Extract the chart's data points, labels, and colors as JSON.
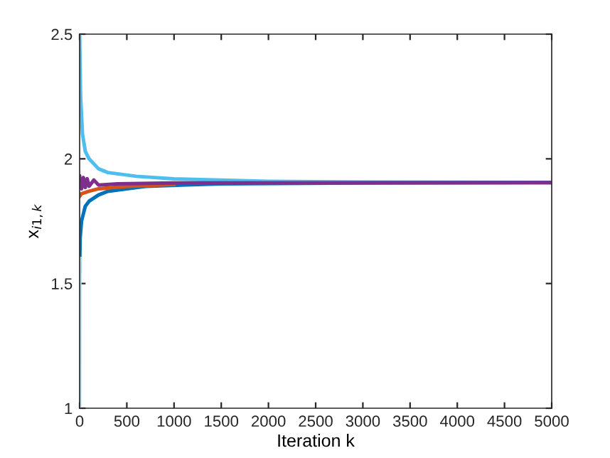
{
  "chart_data": {
    "type": "line",
    "xlabel": "Iteration k",
    "ylabel": "x$_{i1,k}$",
    "xlim": [
      0,
      5000
    ],
    "ylim": [
      1,
      2.5
    ],
    "xticks": [
      0,
      500,
      1000,
      1500,
      2000,
      2500,
      3000,
      3500,
      4000,
      4500,
      5000
    ],
    "yticks": [
      1,
      1.5,
      2,
      2.5
    ],
    "grid": false,
    "legend": false,
    "marker": "none",
    "line_style": "solid",
    "series": [
      {
        "color": "#4dbeee",
        "x": [
          0,
          10,
          30,
          60,
          100,
          200,
          300,
          600,
          1000,
          2000,
          3000,
          5000
        ],
        "values": [
          2.5,
          2.25,
          2.1,
          2.03,
          2.0,
          1.96,
          1.945,
          1.93,
          1.92,
          1.91,
          1.907,
          1.905
        ]
      },
      {
        "color": "#0072bd",
        "x": [
          0,
          5,
          20,
          60,
          100,
          200,
          300,
          700,
          1500,
          3000,
          5000
        ],
        "values": [
          1.55,
          1.68,
          1.75,
          1.81,
          1.83,
          1.855,
          1.87,
          1.89,
          1.9,
          1.903,
          1.905
        ]
      },
      {
        "color": "#d95319",
        "x": [
          0,
          20,
          100,
          200,
          500,
          1000
        ],
        "values": [
          1.85,
          1.86,
          1.87,
          1.88,
          1.89,
          1.897
        ]
      },
      {
        "color": "#7e2f8e",
        "x": [
          0,
          20,
          40,
          60,
          80,
          100,
          150,
          200,
          400,
          1000,
          5000
        ],
        "values": [
          1.93,
          1.88,
          1.925,
          1.885,
          1.92,
          1.89,
          1.915,
          1.895,
          1.9,
          1.903,
          1.905
        ]
      },
      {
        "color": "#a8dce4",
        "x": [
          0,
          2,
          4
        ],
        "values": [
          1.0,
          1.5,
          1.6
        ]
      }
    ]
  }
}
